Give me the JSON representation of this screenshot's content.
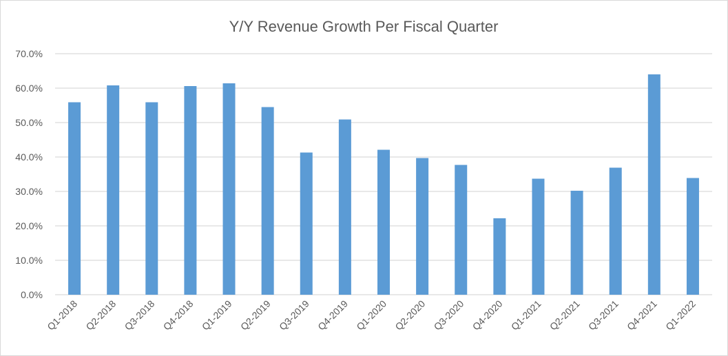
{
  "chart_data": {
    "type": "bar",
    "title": "Y/Y Revenue Growth Per Fiscal Quarter",
    "xlabel": "",
    "ylabel": "",
    "ylim": [
      0,
      70
    ],
    "yticks": [
      0,
      10,
      20,
      30,
      40,
      50,
      60,
      70
    ],
    "ytick_labels": [
      "0.0%",
      "10.0%",
      "20.0%",
      "30.0%",
      "40.0%",
      "50.0%",
      "60.0%",
      "70.0%"
    ],
    "grid": true,
    "legend": "none",
    "categories": [
      "Q1-2018",
      "Q2-2018",
      "Q3-2018",
      "Q4-2018",
      "Q1-2019",
      "Q2-2019",
      "Q3-2019",
      "Q4-2019",
      "Q1-2020",
      "Q2-2020",
      "Q3-2020",
      "Q4-2020",
      "Q1-2021",
      "Q2-2021",
      "Q3-2021",
      "Q4-2021",
      "Q1-2022"
    ],
    "values": [
      55.9,
      60.8,
      55.9,
      60.6,
      61.4,
      54.5,
      41.3,
      50.9,
      42.1,
      39.7,
      37.7,
      22.2,
      33.7,
      30.2,
      36.9,
      64.0,
      33.9
    ],
    "bar_color": "#5b9bd5",
    "grid_color": "#d9d9d9",
    "text_color": "#595959"
  }
}
